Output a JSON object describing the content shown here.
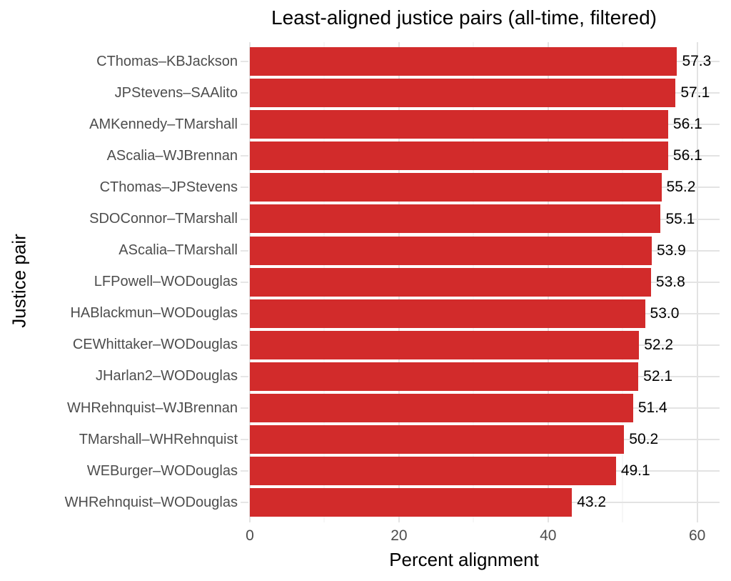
{
  "chart_data": {
    "type": "bar",
    "orientation": "horizontal",
    "title": "Least-aligned justice pairs (all-time, filtered)",
    "xlabel": "Percent alignment",
    "ylabel": "Justice pair",
    "categories": [
      "CThomas–KBJackson",
      "JPStevens–SAAlito",
      "AMKennedy–TMarshall",
      "AScalia–WJBrennan",
      "CThomas–JPStevens",
      "SDOConnor–TMarshall",
      "AScalia–TMarshall",
      "LFPowell–WODouglas",
      "HABlackmun–WODouglas",
      "CEWhittaker–WODouglas",
      "JHarlan2–WODouglas",
      "WHRehnquist–WJBrennan",
      "TMarshall–WHRehnquist",
      "WEBurger–WODouglas",
      "WHRehnquist–WODouglas"
    ],
    "values": [
      57.3,
      57.1,
      56.1,
      56.1,
      55.2,
      55.1,
      53.9,
      53.8,
      53.0,
      52.2,
      52.1,
      51.4,
      50.2,
      49.1,
      43.2
    ],
    "value_labels": [
      "57.3",
      "57.1",
      "56.1",
      "56.1",
      "55.2",
      "55.1",
      "53.9",
      "53.8",
      "53.0",
      "52.2",
      "52.1",
      "51.4",
      "50.2",
      "49.1",
      "43.2"
    ],
    "xlim": [
      0,
      63
    ],
    "x_ticks": [
      0,
      20,
      40,
      60
    ],
    "x_tick_labels": [
      "0",
      "20",
      "40",
      "60"
    ],
    "x_minor_gridlines": [
      10,
      30,
      50
    ],
    "grid": true,
    "legend": "none",
    "colors": {
      "bar": "#d22b2b",
      "axis_text": "#4d4d4d",
      "title_text": "#000000",
      "grid_major": "#e3e3e3",
      "grid_minor": "#efefef",
      "background": "#ffffff"
    }
  }
}
